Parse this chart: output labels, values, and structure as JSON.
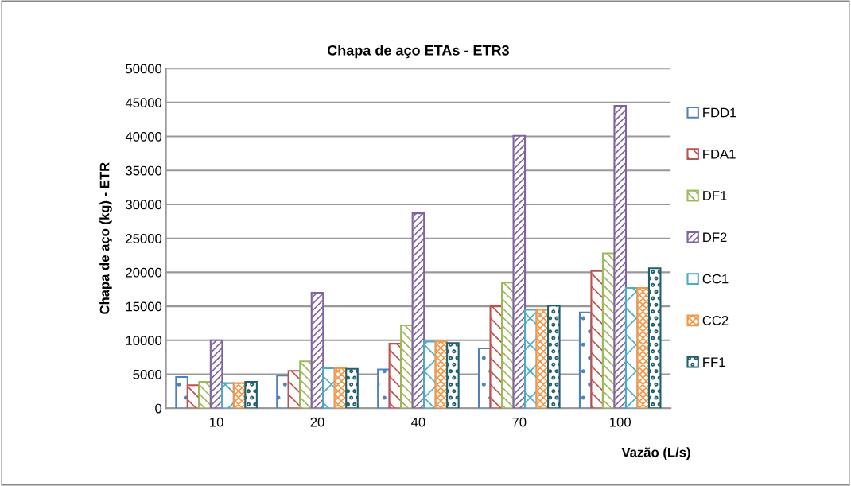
{
  "chart_data": {
    "type": "bar",
    "title": "Chapa de aço ETAs - ETR3",
    "xlabel": "Vazão (L/s)",
    "ylabel": "Chapa de aço (kg) - ETR",
    "categories": [
      "10",
      "20",
      "40",
      "70",
      "100"
    ],
    "series": [
      {
        "name": "FDD1",
        "color": "#4f81bd",
        "values": [
          4600,
          4800,
          5700,
          8800,
          14100
        ]
      },
      {
        "name": "FDA1",
        "color": "#c0504d",
        "values": [
          3400,
          5500,
          9500,
          15000,
          20200
        ]
      },
      {
        "name": "DF1",
        "color": "#9bbb59",
        "values": [
          3900,
          6900,
          12200,
          18500,
          22800
        ]
      },
      {
        "name": "DF2",
        "color": "#8064a2",
        "values": [
          10000,
          17000,
          28700,
          40100,
          44500
        ]
      },
      {
        "name": "CC1",
        "color": "#4bacc6",
        "values": [
          3700,
          5900,
          9800,
          14500,
          17700
        ]
      },
      {
        "name": "CC2",
        "color": "#f79646",
        "values": [
          3700,
          5900,
          9800,
          14500,
          17700
        ]
      },
      {
        "name": "FF1",
        "color": "#1f5f6e",
        "values": [
          3900,
          5800,
          9600,
          15100,
          20600
        ]
      }
    ],
    "ylim": [
      0,
      50000
    ],
    "yticks": [
      0,
      5000,
      10000,
      15000,
      20000,
      25000,
      30000,
      35000,
      40000,
      45000,
      50000
    ],
    "grid": "y",
    "legend": "right"
  }
}
